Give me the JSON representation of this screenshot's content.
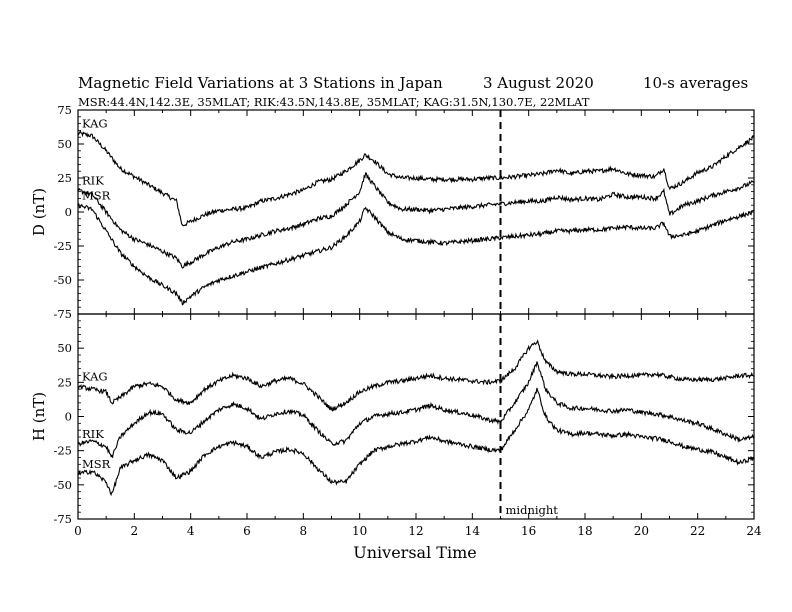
{
  "header": {
    "title": "Magnetic Field Variations at 3 Stations in Japan",
    "date": "3   August   2020",
    "averaging": "10-s averages",
    "stations": "MSR:44.4N,142.3E, 35MLAT;  RIK:43.5N,143.8E, 35MLAT;  KAG:31.5N,130.7E, 22MLAT"
  },
  "chart_data": [
    {
      "type": "line",
      "panel": "top",
      "ylabel": "D (nT)",
      "ylim": [
        -75,
        75
      ],
      "yticks": [
        -75,
        -50,
        -25,
        0,
        25,
        50,
        75
      ],
      "xlim": [
        0,
        24
      ],
      "series": [
        {
          "name": "KAG",
          "x": [
            0,
            0.5,
            1,
            1.5,
            2,
            2.5,
            3,
            3.5,
            3.7,
            4,
            4.5,
            5,
            5.5,
            6,
            6.5,
            7,
            7.5,
            8,
            8.5,
            9,
            9.5,
            10,
            10.2,
            10.5,
            11,
            11.5,
            12,
            12.5,
            13,
            13.5,
            14,
            14.5,
            15,
            15.5,
            16,
            16.5,
            17,
            17.5,
            18,
            18.5,
            19,
            19.5,
            20,
            20.5,
            20.8,
            21,
            21.5,
            22,
            22.5,
            23,
            23.5,
            24
          ],
          "values": [
            58,
            56,
            45,
            32,
            26,
            20,
            14,
            8,
            -10,
            -7,
            -2,
            1,
            2,
            3,
            8,
            10,
            13,
            16,
            22,
            24,
            30,
            38,
            42,
            38,
            28,
            25,
            25,
            24,
            24,
            24,
            24,
            25,
            25,
            26,
            27,
            28,
            31,
            28,
            30,
            30,
            32,
            28,
            27,
            26,
            32,
            17,
            22,
            29,
            33,
            41,
            48,
            55
          ]
        },
        {
          "name": "RIK",
          "x": [
            0,
            0.5,
            1,
            1.5,
            2,
            2.5,
            3,
            3.5,
            3.7,
            4,
            4.5,
            5,
            5.5,
            6,
            6.5,
            7,
            7.5,
            8,
            8.5,
            9,
            9.5,
            10,
            10.2,
            10.5,
            11,
            11.5,
            12,
            12.5,
            13,
            13.5,
            14,
            14.5,
            15,
            15.5,
            16,
            16.5,
            17,
            17.5,
            18,
            18.5,
            19,
            19.5,
            20,
            20.5,
            20.8,
            21,
            21.5,
            22,
            22.5,
            23,
            23.5,
            24
          ],
          "values": [
            16,
            13,
            0,
            -13,
            -20,
            -24,
            -29,
            -34,
            -40,
            -37,
            -31,
            -26,
            -22,
            -20,
            -17,
            -14,
            -12,
            -9,
            -5,
            -3,
            5,
            15,
            28,
            20,
            7,
            2,
            2,
            1,
            2,
            3,
            4,
            5,
            6,
            7,
            8,
            8,
            11,
            9,
            10,
            9,
            13,
            11,
            11,
            10,
            15,
            -2,
            5,
            8,
            12,
            15,
            18,
            22
          ]
        },
        {
          "name": "MSR",
          "x": [
            0,
            0.5,
            1,
            1.5,
            2,
            2.5,
            3,
            3.5,
            3.7,
            4,
            4.5,
            5,
            5.5,
            6,
            6.5,
            7,
            7.5,
            8,
            8.5,
            9,
            9.5,
            10,
            10.2,
            10.5,
            11,
            11.5,
            12,
            12.5,
            13,
            13.5,
            14,
            14.5,
            15,
            15.5,
            16,
            16.5,
            17,
            17.5,
            18,
            18.5,
            19,
            19.5,
            20,
            20.5,
            20.8,
            21,
            21.5,
            22,
            22.5,
            23,
            23.5,
            24
          ],
          "values": [
            5,
            2,
            -14,
            -30,
            -40,
            -48,
            -54,
            -60,
            -67,
            -62,
            -55,
            -50,
            -47,
            -44,
            -41,
            -38,
            -35,
            -32,
            -29,
            -26,
            -18,
            -7,
            3,
            -3,
            -15,
            -20,
            -21,
            -22,
            -23,
            -22,
            -21,
            -20,
            -19,
            -18,
            -17,
            -16,
            -14,
            -14,
            -13,
            -13,
            -12,
            -11,
            -12,
            -12,
            -8,
            -18,
            -17,
            -14,
            -10,
            -6,
            -3,
            0
          ]
        }
      ]
    },
    {
      "type": "line",
      "panel": "bottom",
      "ylabel": "H (nT)",
      "xlabel": "Universal Time",
      "ylim": [
        -75,
        75
      ],
      "yticks": [
        -75,
        -50,
        -25,
        0,
        25,
        50,
        75
      ],
      "xlim": [
        0,
        24
      ],
      "xticks": [
        0,
        2,
        4,
        6,
        8,
        10,
        12,
        14,
        16,
        18,
        20,
        22,
        24
      ],
      "series": [
        {
          "name": "KAG",
          "x": [
            0,
            0.5,
            1,
            1.2,
            1.5,
            2,
            2.5,
            3,
            3.5,
            4,
            4.5,
            5,
            5.5,
            6,
            6.5,
            7,
            7.5,
            8,
            8.5,
            9,
            9.5,
            10,
            10.5,
            11,
            11.5,
            12,
            12.5,
            13,
            13.5,
            14,
            14.5,
            15,
            15.5,
            16,
            16.3,
            16.6,
            17,
            17.5,
            18,
            18.5,
            19,
            19.5,
            20,
            20.5,
            21,
            21.5,
            22,
            22.5,
            23,
            23.5,
            24
          ],
          "values": [
            22,
            20,
            18,
            10,
            14,
            22,
            24,
            22,
            12,
            10,
            20,
            26,
            30,
            28,
            22,
            26,
            28,
            24,
            15,
            5,
            10,
            18,
            22,
            25,
            26,
            28,
            30,
            28,
            27,
            26,
            25,
            26,
            35,
            50,
            55,
            40,
            33,
            31,
            31,
            30,
            29,
            30,
            30,
            31,
            29,
            27,
            27,
            27,
            28,
            30,
            30
          ]
        },
        {
          "name": "RIK",
          "x": [
            0,
            0.5,
            1,
            1.2,
            1.5,
            2,
            2.5,
            3,
            3.5,
            4,
            4.5,
            5,
            5.5,
            6,
            6.5,
            7,
            7.5,
            8,
            8.5,
            9,
            9.5,
            10,
            10.5,
            11,
            11.5,
            12,
            12.5,
            13,
            13.5,
            14,
            14.5,
            15,
            15.5,
            16,
            16.3,
            16.6,
            17,
            17.5,
            18,
            18.5,
            19,
            19.5,
            20,
            20.5,
            21,
            21.5,
            22,
            22.5,
            23,
            23.5,
            24
          ],
          "values": [
            -20,
            -18,
            -22,
            -30,
            -15,
            -5,
            3,
            2,
            -10,
            -12,
            -3,
            5,
            9,
            6,
            -2,
            2,
            4,
            1,
            -10,
            -20,
            -18,
            -5,
            0,
            2,
            3,
            5,
            8,
            5,
            3,
            1,
            -2,
            -4,
            10,
            25,
            40,
            20,
            10,
            6,
            6,
            5,
            4,
            5,
            3,
            2,
            0,
            -3,
            -5,
            -9,
            -13,
            -17,
            -15
          ]
        },
        {
          "name": "MSR",
          "x": [
            0,
            0.5,
            1,
            1.2,
            1.5,
            2,
            2.5,
            3,
            3.5,
            4,
            4.5,
            5,
            5.5,
            6,
            6.5,
            7,
            7.5,
            8,
            8.5,
            9,
            9.5,
            10,
            10.5,
            11,
            11.5,
            12,
            12.5,
            13,
            13.5,
            14,
            14.5,
            15,
            15.5,
            16,
            16.3,
            16.6,
            17,
            17.5,
            18,
            18.5,
            19,
            19.5,
            20,
            20.5,
            21,
            21.5,
            22,
            22.5,
            23,
            23.5,
            24
          ],
          "values": [
            -42,
            -40,
            -48,
            -57,
            -38,
            -32,
            -28,
            -32,
            -45,
            -40,
            -28,
            -22,
            -19,
            -22,
            -30,
            -26,
            -24,
            -27,
            -38,
            -48,
            -48,
            -35,
            -25,
            -22,
            -20,
            -18,
            -15,
            -18,
            -20,
            -22,
            -24,
            -25,
            -10,
            5,
            20,
            0,
            -10,
            -13,
            -12,
            -13,
            -14,
            -13,
            -15,
            -16,
            -18,
            -22,
            -24,
            -26,
            -30,
            -34,
            -30
          ]
        }
      ]
    }
  ],
  "annotations": {
    "midnight_ut": 15,
    "midnight_label": "midnight"
  }
}
